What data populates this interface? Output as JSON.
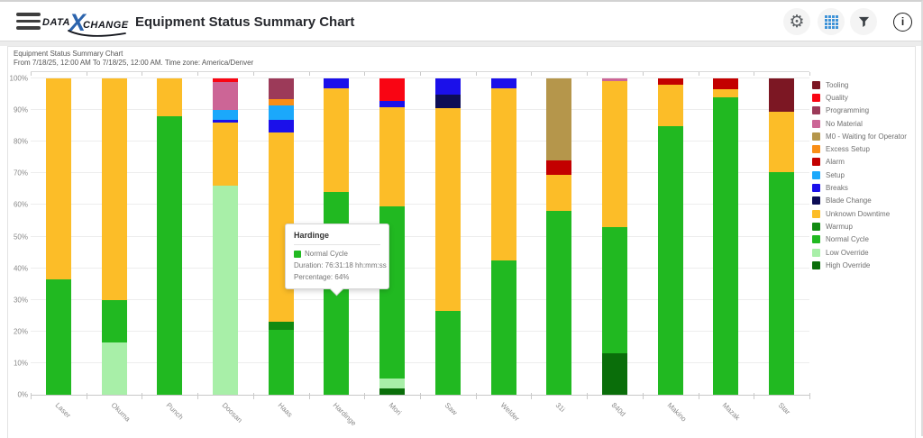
{
  "header": {
    "title": "Equipment Status Summary Chart",
    "logo": {
      "data": "DATA",
      "x": "X",
      "change": "CHANGE"
    },
    "toolbar_icons": [
      {
        "name": "settings-gear-icon"
      },
      {
        "name": "table-grid-icon",
        "color": "#3f93d8"
      },
      {
        "name": "filter-funnel-icon"
      },
      {
        "name": "info-icon",
        "glyph": "i"
      }
    ]
  },
  "report": {
    "title": "Equipment Status Summary Chart",
    "subtitle": "From 7/18/25, 12:00 AM To 7/18/25, 12:00 AM. Time zone: America/Denver"
  },
  "chart_data": {
    "type": "bar",
    "stacked": true,
    "grid": true,
    "legend_position": "right",
    "y_axis": {
      "min": 0,
      "max": 100,
      "tick_step": 10,
      "ticks": [
        "0%",
        "10%",
        "20%",
        "30%",
        "40%",
        "50%",
        "60%",
        "70%",
        "80%",
        "90%",
        "100%"
      ]
    },
    "categories": [
      "Laser",
      "Okuma",
      "Punch",
      "Doosan",
      "Haas",
      "Hardinge",
      "Mori",
      "Saw",
      "Welder",
      "31i",
      "840d",
      "Makino",
      "Mazak",
      "Star"
    ],
    "series": [
      {
        "name": "High Override",
        "color": "#0a6e0a",
        "values": [
          0,
          0,
          0,
          0,
          0,
          0,
          2,
          0,
          0,
          0,
          13,
          0,
          0,
          0
        ]
      },
      {
        "name": "Low Override",
        "color": "#a8efa8",
        "values": [
          0,
          16.5,
          0,
          66,
          0,
          0,
          3,
          0,
          0,
          0,
          0,
          0,
          0,
          0
        ]
      },
      {
        "name": "Normal Cycle",
        "color": "#21b921",
        "values": [
          36.5,
          13.5,
          88,
          0,
          20.5,
          64,
          54.5,
          26.5,
          42.5,
          58,
          40,
          85,
          94,
          70.5
        ]
      },
      {
        "name": "Warmup",
        "color": "#118a11",
        "values": [
          0,
          0,
          0,
          0,
          2.5,
          0,
          0,
          0,
          0,
          0,
          0,
          0,
          0,
          0
        ]
      },
      {
        "name": "Unknown Downtime",
        "color": "#fcbd28",
        "values": [
          63.5,
          70,
          12,
          20,
          60,
          33,
          31.5,
          64,
          54.5,
          11.5,
          46.2,
          13,
          2.5,
          19
        ]
      },
      {
        "name": "Blade Change",
        "color": "#0d0d56",
        "values": [
          0,
          0,
          0,
          0,
          0,
          0,
          0,
          4.5,
          0,
          0,
          0,
          0,
          0,
          0
        ]
      },
      {
        "name": "Breaks",
        "color": "#1b10ea",
        "values": [
          0,
          0,
          0,
          1,
          4,
          3,
          2,
          5,
          3,
          0,
          0,
          0,
          0,
          0
        ]
      },
      {
        "name": "Setup",
        "color": "#1ba8fb",
        "values": [
          0,
          0,
          0,
          3,
          4.5,
          0,
          0,
          0,
          0,
          0,
          0,
          0,
          0,
          0
        ]
      },
      {
        "name": "Alarm",
        "color": "#c30000",
        "values": [
          0,
          0,
          0,
          0,
          0,
          0,
          0,
          0,
          0,
          4.5,
          0,
          2,
          3.5,
          0
        ]
      },
      {
        "name": "Excess Setup",
        "color": "#f98e16",
        "values": [
          0,
          0,
          0,
          0,
          2,
          0,
          0,
          0,
          0,
          0,
          0,
          0,
          0,
          0
        ]
      },
      {
        "name": "M0 - Waiting for Operator",
        "color": "#b5964b",
        "values": [
          0,
          0,
          0,
          0,
          0,
          0,
          0,
          0,
          0,
          26,
          0,
          0,
          0,
          0
        ]
      },
      {
        "name": "No Material",
        "color": "#cc6596",
        "values": [
          0,
          0,
          0,
          9,
          0,
          0,
          0,
          0,
          0,
          0,
          0.8,
          0,
          0,
          0
        ]
      },
      {
        "name": "Programming",
        "color": "#9c3a59",
        "values": [
          0,
          0,
          0,
          0,
          6.5,
          0,
          0,
          0,
          0,
          0,
          0,
          0,
          0,
          0
        ]
      },
      {
        "name": "Quality",
        "color": "#f90513",
        "values": [
          0,
          0,
          0,
          1,
          0,
          0,
          7,
          0,
          0,
          0,
          0,
          0,
          0,
          0
        ]
      },
      {
        "name": "Tooling",
        "color": "#7c1723",
        "values": [
          0,
          0,
          0,
          0,
          0,
          0,
          0,
          0,
          0,
          0,
          0,
          0,
          0,
          10.5
        ]
      }
    ],
    "highlight": {
      "category": "Hardinge",
      "series": "Normal Cycle"
    }
  },
  "tooltip": {
    "title": "Hardinge",
    "series": "Normal Cycle",
    "swatch_color": "#21b921",
    "duration": "Duration: 76:31:18 hh:mm:ss",
    "percentage": "Percentage: 64%"
  }
}
